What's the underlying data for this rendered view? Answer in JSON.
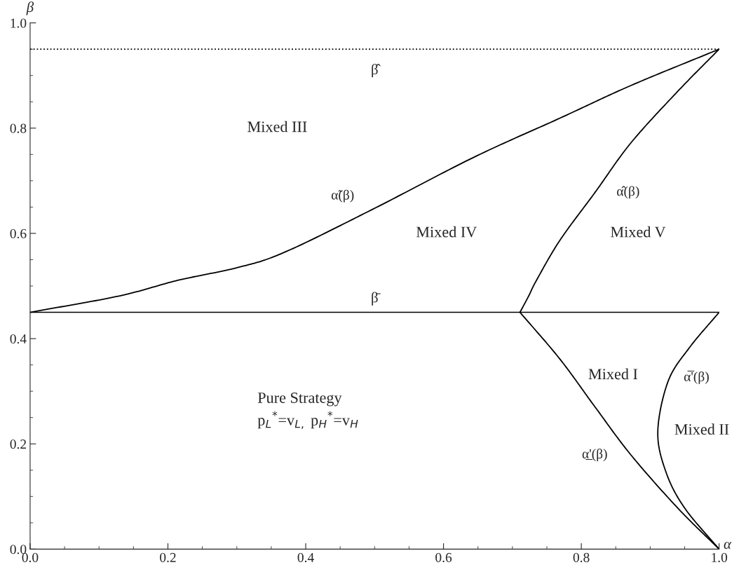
{
  "chart_data": {
    "type": "line",
    "xlabel": "α",
    "ylabel": "β",
    "xlim": [
      0,
      1
    ],
    "ylim": [
      0,
      1
    ],
    "xticks": [
      {
        "value": 0,
        "label": "0.0"
      },
      0.2,
      0.4,
      0.6,
      0.8,
      {
        "value": 1,
        "label": "1.0"
      }
    ],
    "yticks": [
      {
        "value": 0,
        "label": "0.0"
      },
      0.2,
      0.4,
      0.6,
      0.8,
      {
        "value": 1,
        "label": "1.0"
      }
    ],
    "grid": false,
    "legend": false,
    "marker": "none",
    "line_style": "solid",
    "series": [
      {
        "name": "α̃(β)",
        "color": "#000000",
        "x": [
          0,
          0.129,
          0.215,
          0.301,
          0.369,
          0.496,
          0.643,
          0.769,
          0.872,
          1.0
        ],
        "values": [
          0.45,
          0.481,
          0.511,
          0.535,
          0.564,
          0.645,
          0.744,
          0.819,
          0.881,
          0.95
        ]
      },
      {
        "name": "α̂(β)",
        "color": "#000000",
        "x": [
          0.711,
          0.724,
          0.735,
          0.769,
          0.82,
          0.872,
          0.94,
          1.0
        ],
        "values": [
          0.45,
          0.482,
          0.511,
          0.587,
          0.678,
          0.772,
          0.87,
          0.95
        ]
      },
      {
        "name": "α̲'(β)",
        "color": "#000000",
        "x": [
          0.711,
          0.769,
          0.82,
          0.872,
          0.94,
          1.0
        ],
        "values": [
          0.45,
          0.361,
          0.27,
          0.179,
          0.078,
          0.0
        ]
      },
      {
        "name": "α̅'(β)",
        "color": "#000000",
        "x": [
          1.0,
          0.957,
          0.926,
          0.911,
          0.923,
          0.95,
          1.0
        ],
        "values": [
          0.45,
          0.383,
          0.319,
          0.223,
          0.146,
          0.078,
          0.0
        ]
      }
    ],
    "ref_lines": [
      {
        "axis": "y",
        "value": 0.45,
        "label": "β̄",
        "color": "#000000",
        "line_style": "solid"
      },
      {
        "axis": "y",
        "value": 0.95,
        "label": "β̂",
        "color": "#000000",
        "line_style": "dotted"
      }
    ],
    "annotations": [
      "Mixed III",
      "Mixed IV",
      "Mixed V",
      "Mixed I",
      "Mixed II",
      "Pure Strategy",
      "p$_{L}$$^{*}$=v$_{L,}$ p$_{H}$$^{*}$=v$_{H}$"
    ]
  }
}
